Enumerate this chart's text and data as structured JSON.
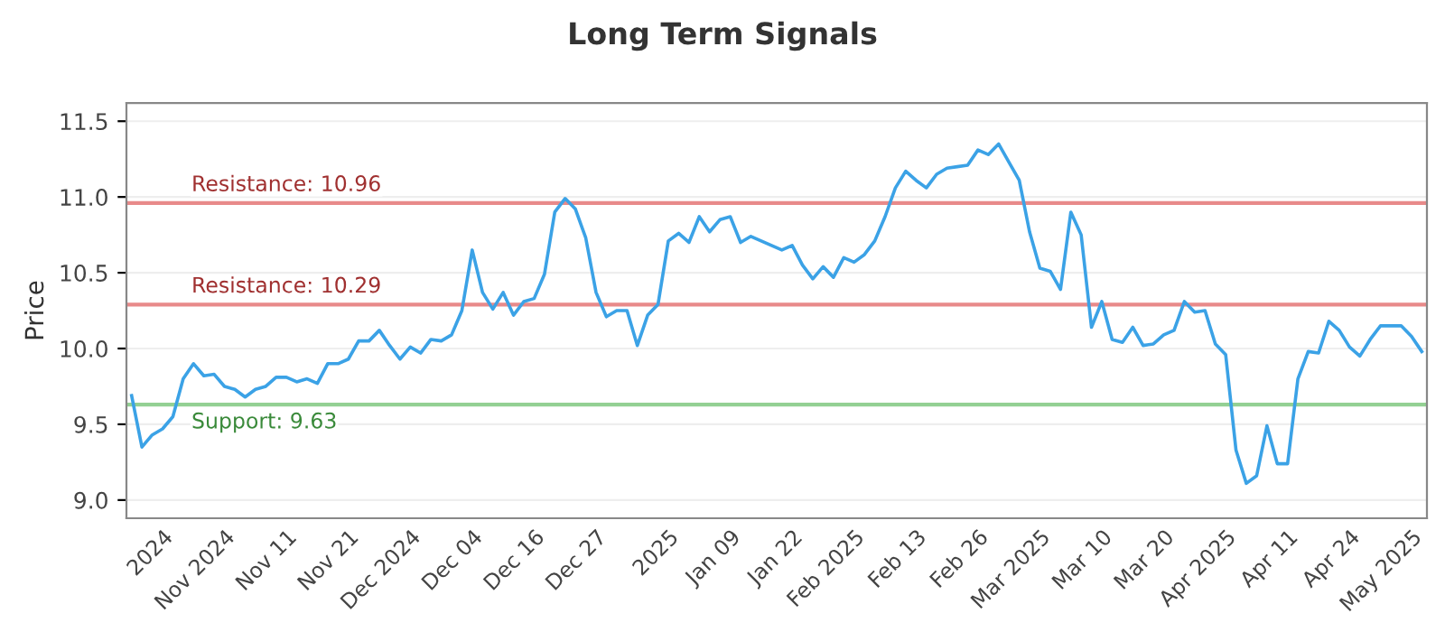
{
  "chart_data": {
    "type": "line",
    "title": "Long Term Signals",
    "ylabel": "Price",
    "categories": [
      null,
      null,
      null,
      "2024",
      null,
      null,
      null,
      null,
      null,
      "Nov 2024",
      null,
      null,
      null,
      null,
      null,
      "Nov 11",
      null,
      null,
      null,
      null,
      null,
      "Nov 21",
      null,
      null,
      null,
      null,
      null,
      "Dec 2024",
      null,
      null,
      null,
      null,
      null,
      "Dec 04",
      null,
      null,
      null,
      null,
      null,
      "Dec 16",
      null,
      null,
      null,
      null,
      null,
      "Dec 27",
      null,
      null,
      null,
      null,
      null,
      null,
      "2025",
      null,
      null,
      null,
      null,
      null,
      "Jan 09",
      null,
      null,
      null,
      null,
      null,
      "Jan 22",
      null,
      null,
      null,
      null,
      null,
      "Feb 2025",
      null,
      null,
      null,
      null,
      null,
      "Feb 13",
      null,
      null,
      null,
      null,
      null,
      "Feb 26",
      null,
      null,
      null,
      null,
      null,
      "Mar 2025",
      null,
      null,
      null,
      null,
      null,
      "Mar 10",
      null,
      null,
      null,
      null,
      null,
      "Mar 20",
      null,
      null,
      null,
      null,
      null,
      "Apr 2025",
      null,
      null,
      null,
      null,
      null,
      "Apr 11",
      null,
      null,
      null,
      null,
      null,
      "Apr 24",
      null,
      null,
      null,
      null,
      null,
      "May 2025",
      null
    ],
    "series": [
      {
        "color": "#3ba2e6",
        "values": [
          9.69,
          9.35,
          9.43,
          9.47,
          9.55,
          9.8,
          9.9,
          9.82,
          9.83,
          9.75,
          9.73,
          9.68,
          9.73,
          9.75,
          9.81,
          9.81,
          9.78,
          9.8,
          9.77,
          9.9,
          9.9,
          9.93,
          10.05,
          10.05,
          10.12,
          10.02,
          9.93,
          10.01,
          9.97,
          10.06,
          10.05,
          10.09,
          10.25,
          10.65,
          10.37,
          10.26,
          10.37,
          10.22,
          10.31,
          10.33,
          10.49,
          10.9,
          10.99,
          10.92,
          10.73,
          10.37,
          10.21,
          10.25,
          10.25,
          10.02,
          10.22,
          10.29,
          10.71,
          10.76,
          10.7,
          10.87,
          10.77,
          10.85,
          10.87,
          10.7,
          10.74,
          10.71,
          10.68,
          10.65,
          10.68,
          10.55,
          10.46,
          10.54,
          10.47,
          10.6,
          10.57,
          10.62,
          10.71,
          10.87,
          11.06,
          11.17,
          11.11,
          11.06,
          11.15,
          11.19,
          11.2,
          11.21,
          11.31,
          11.28,
          11.35,
          11.23,
          11.11,
          10.77,
          10.53,
          10.51,
          10.39,
          10.9,
          10.75,
          10.14,
          10.31,
          10.06,
          10.04,
          10.14,
          10.02,
          10.03,
          10.09,
          10.12,
          10.31,
          10.24,
          10.25,
          10.03,
          9.96,
          9.33,
          9.11,
          9.16,
          9.49,
          9.24,
          9.24,
          9.8,
          9.98,
          9.97,
          10.18,
          10.12,
          10.01,
          9.95,
          10.06,
          10.15,
          10.15,
          10.15,
          10.08,
          9.98
        ]
      }
    ],
    "ylim": [
      8.88,
      11.62
    ],
    "yticks": [
      {
        "value": 9,
        "label": "9.0"
      },
      9.5,
      {
        "value": 10,
        "label": "10.0"
      },
      10.5,
      {
        "value": 11,
        "label": "11.0"
      },
      11.5
    ],
    "grid": "y",
    "ref_lines": [
      {
        "axis": "y",
        "value": 10.96,
        "label": "Resistance: 10.96",
        "color": "#e88a8a"
      },
      {
        "axis": "y",
        "value": 10.29,
        "label": "Resistance: 10.29",
        "color": "#e88a8a"
      },
      {
        "axis": "y",
        "value": 9.63,
        "label": "Support: 9.63",
        "color": "#93d093"
      }
    ]
  }
}
